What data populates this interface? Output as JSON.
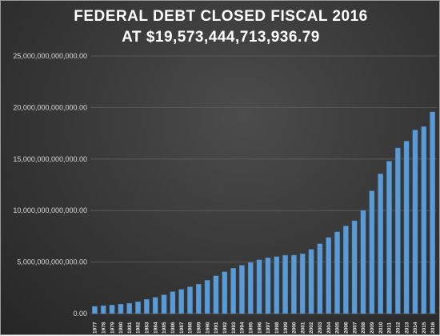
{
  "chart_data": {
    "type": "bar",
    "title": "FEDERAL DEBT CLOSED FISCAL 2016",
    "subtitle": "AT $19,573,444,713,936.79",
    "xlabel": "",
    "ylabel": "",
    "ylim": [
      0,
      25000000000000
    ],
    "yticks": [
      0,
      5000000000000,
      10000000000000,
      15000000000000,
      20000000000000,
      25000000000000
    ],
    "ytick_labels": [
      "0.00",
      "5,000,000,000,000.00",
      "10,000,000,000,000.00",
      "15,000,000,000,000.00",
      "20,000,000,000,000.00",
      "25,000,000,000,000.00"
    ],
    "grid": true,
    "legend": "none",
    "colors": {
      "bar": "#5b9bd5",
      "bar_edge": "#3f78b0",
      "grid": "#5f5f5f",
      "text": "#ffffff"
    },
    "categories": [
      "1977",
      "1978",
      "1979",
      "1980",
      "1981",
      "1982",
      "1983",
      "1984",
      "1985",
      "1986",
      "1987",
      "1988",
      "1989",
      "1990",
      "1991",
      "1992",
      "1993",
      "1994",
      "1995",
      "1996",
      "1997",
      "1998",
      "1999",
      "2000",
      "2001",
      "2002",
      "2003",
      "2004",
      "2005",
      "2006",
      "2007",
      "2008",
      "2009",
      "2010",
      "2011",
      "2012",
      "2013",
      "2014",
      "2015",
      "2016"
    ],
    "values": [
      700000000000,
      770000000000,
      830000000000,
      910000000000,
      1000000000000,
      1150000000000,
      1380000000000,
      1570000000000,
      1820000000000,
      2130000000000,
      2350000000000,
      2600000000000,
      2860000000000,
      3230000000000,
      3670000000000,
      4060000000000,
      4410000000000,
      4690000000000,
      4970000000000,
      5220000000000,
      5410000000000,
      5530000000000,
      5660000000000,
      5670000000000,
      5810000000000,
      6230000000000,
      6780000000000,
      7380000000000,
      7930000000000,
      8510000000000,
      9010000000000,
      10020000000000,
      11910000000000,
      13560000000000,
      14790000000000,
      16070000000000,
      16740000000000,
      17820000000000,
      18150000000000,
      19570000000000
    ]
  }
}
